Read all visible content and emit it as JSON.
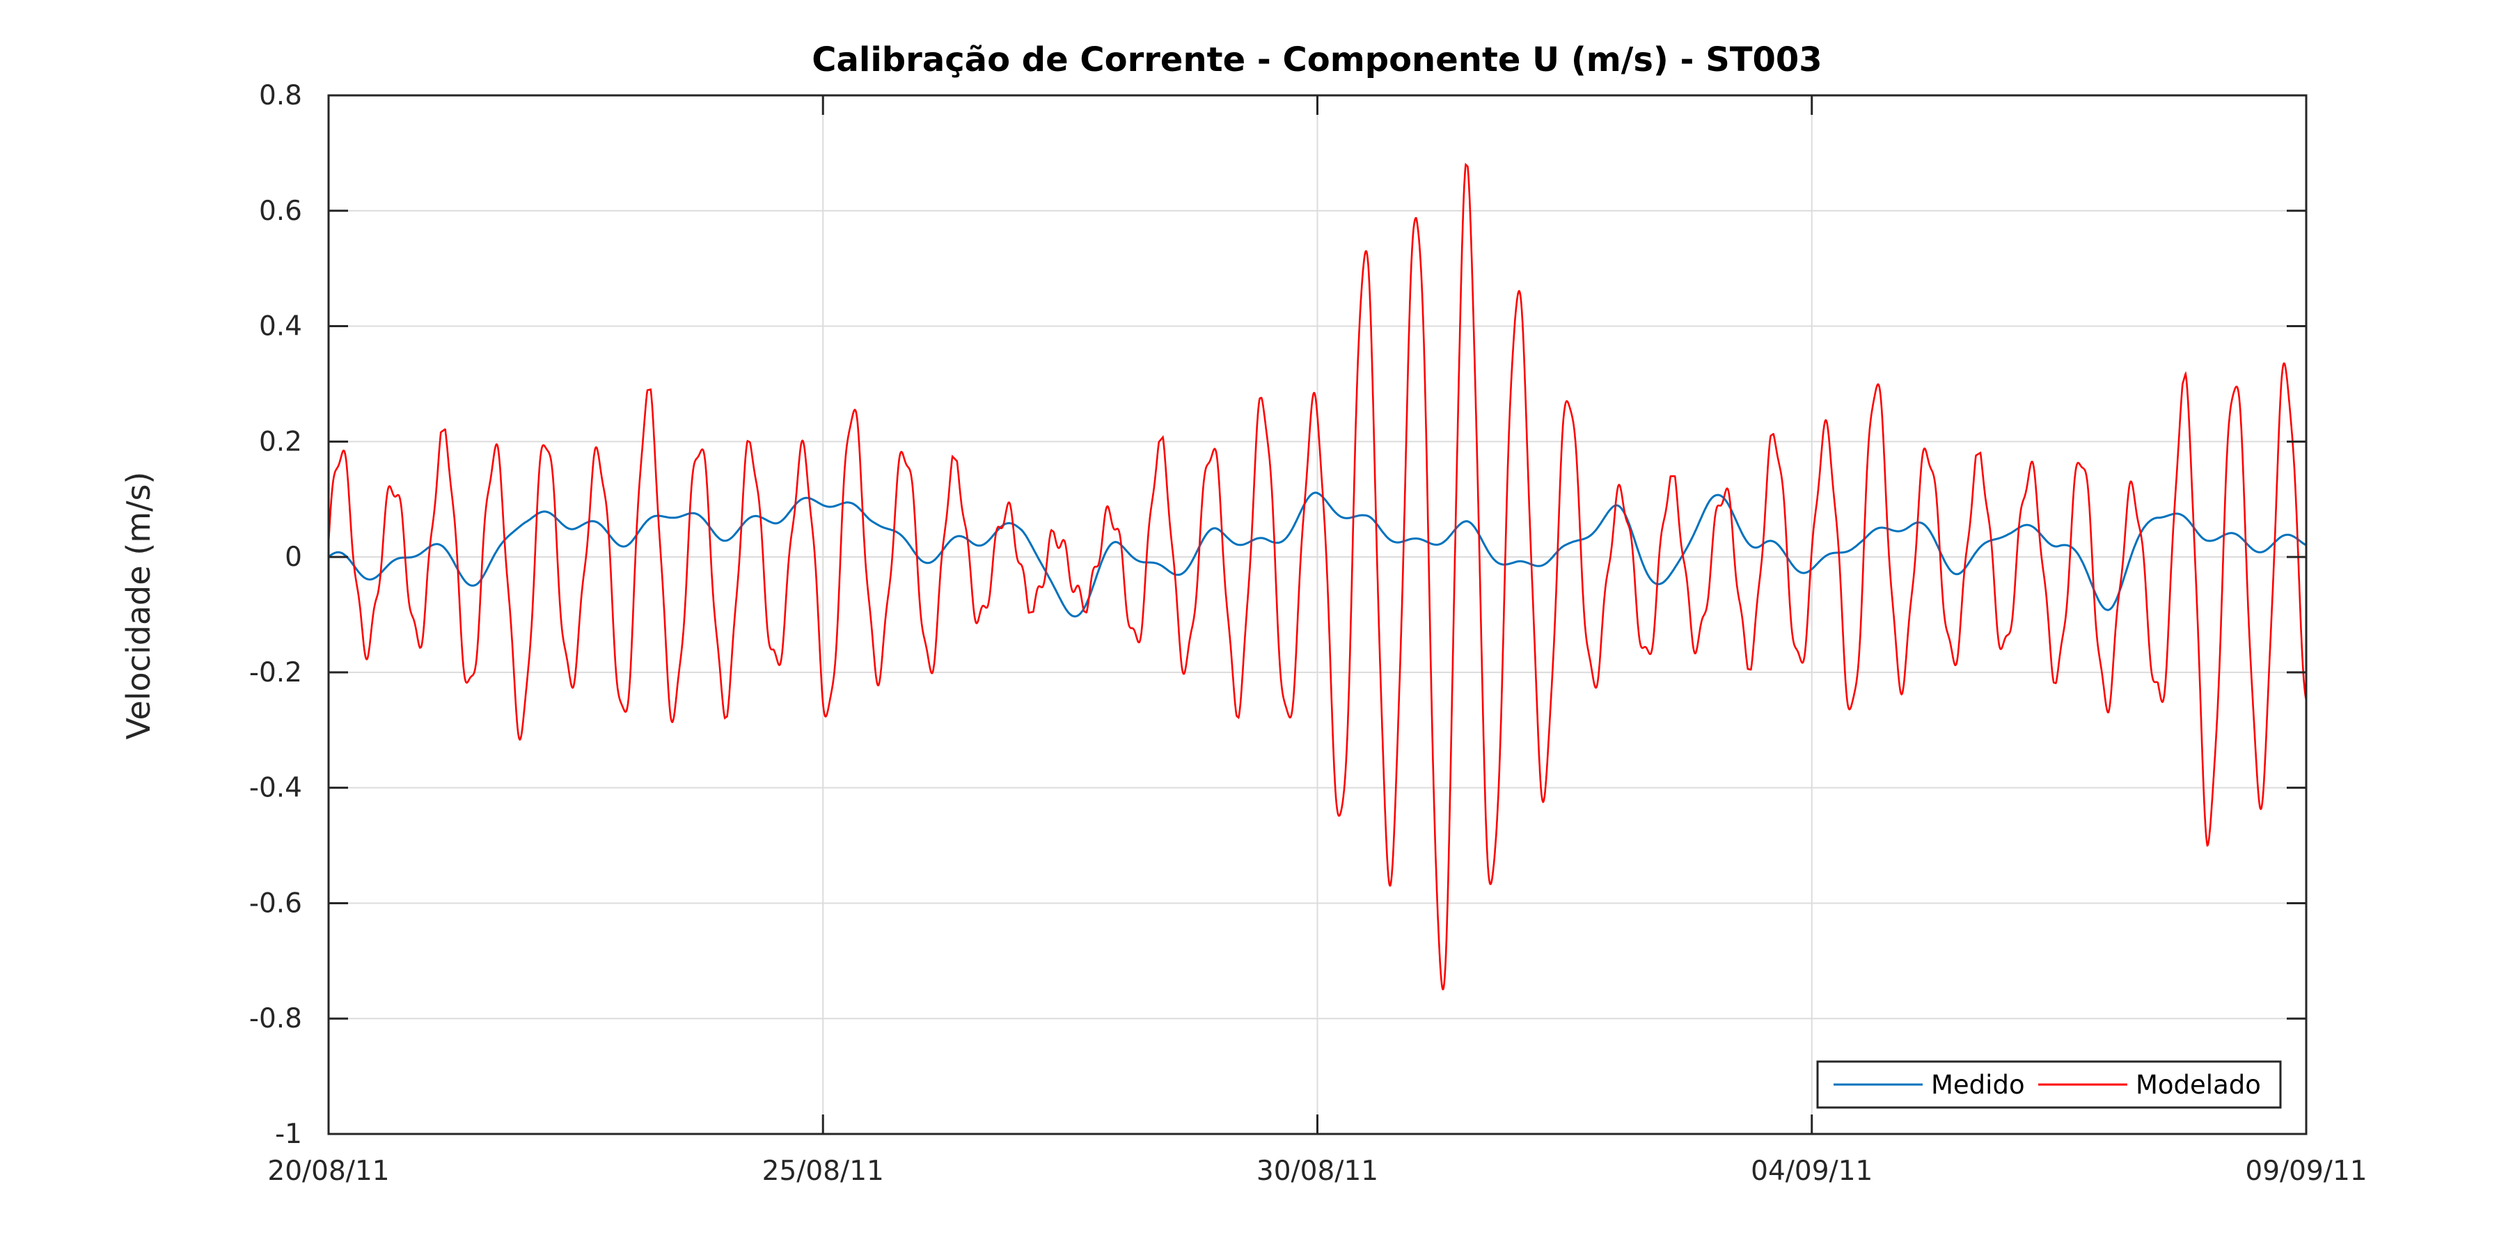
{
  "chart_data": {
    "type": "line",
    "title": "Calibração de Corrente - Componente U (m/s) - ST003",
    "xlabel": "",
    "ylabel": "Velocidade (m/s)",
    "xlim": [
      "2011-08-20",
      "2011-09-09"
    ],
    "ylim": [
      -1,
      0.8
    ],
    "x_ticks": [
      "20/08/11",
      "25/08/11",
      "30/08/11",
      "04/09/11",
      "09/09/11"
    ],
    "y_ticks": [
      "0.8",
      "0.6",
      "0.4",
      "0.2",
      "0",
      "-0.2",
      "-0.4",
      "-0.6",
      "-0.8",
      "-1"
    ],
    "grid": true,
    "legend_position": "bottom-right",
    "series": [
      {
        "name": "Medido",
        "color": "#0072BD",
        "x_unit": "day offset from 20/08/11",
        "x": [
          0,
          0.5,
          1,
          1.5,
          2,
          2.5,
          3,
          3.5,
          4,
          4.5,
          5,
          5.5,
          6,
          6.5,
          7,
          7.5,
          8,
          8.5,
          9,
          9.5,
          10,
          10.5,
          11,
          11.5,
          12,
          12.5,
          13,
          13.5,
          14,
          14.5,
          15,
          15.5,
          16,
          16.5,
          17,
          17.5,
          18,
          18.5,
          19,
          19.5,
          20
        ],
        "values": [
          0,
          -0.03,
          0.02,
          -0.04,
          0.07,
          0.06,
          0.03,
          0.08,
          0.04,
          0.07,
          0.1,
          0.07,
          0,
          0.03,
          0.05,
          -0.1,
          0.02,
          -0.03,
          0.04,
          0.02,
          0.1,
          0.06,
          0.02,
          0.05,
          -0.02,
          0.01,
          0.08,
          -0.05,
          0.1,
          0.02,
          -0.02,
          0.03,
          0.06,
          -0.02,
          0.05,
          0.03,
          -0.08,
          0.08,
          0.04,
          0.02,
          0.03
        ]
      },
      {
        "name": "Modelado",
        "color": "#FF0000",
        "x_unit": "day offset from 20/08/11",
        "envelope_x": [
          0,
          0.5,
          1,
          1.5,
          2,
          2.5,
          3,
          3.5,
          4,
          4.5,
          5,
          5.5,
          6,
          6.5,
          7,
          7.5,
          8,
          8.5,
          9,
          9.5,
          10,
          10.5,
          11,
          11.5,
          12,
          12.5,
          13,
          13.5,
          14,
          14.5,
          15,
          15.5,
          16,
          16.5,
          17,
          17.5,
          18,
          18.5,
          19,
          19.5,
          20
        ],
        "envelope_max": [
          0.2,
          0.15,
          0.2,
          0.26,
          0.22,
          0.2,
          0.28,
          0.3,
          0.22,
          0.18,
          0.28,
          0.25,
          0.23,
          0.14,
          0.09,
          0.02,
          0.12,
          0.22,
          0.25,
          0.28,
          0.35,
          0.55,
          0.77,
          0.68,
          0.6,
          0.3,
          0.15,
          0.14,
          0.14,
          0.2,
          0.26,
          0.32,
          0.28,
          0.16,
          0.21,
          0.18,
          0.18,
          0.15,
          0.45,
          0.38,
          0.3
        ],
        "envelope_min": [
          -0.15,
          -0.2,
          -0.15,
          -0.3,
          -0.32,
          -0.25,
          -0.3,
          -0.33,
          -0.28,
          -0.22,
          -0.3,
          -0.25,
          -0.22,
          -0.14,
          -0.1,
          -0.08,
          -0.13,
          -0.22,
          -0.25,
          -0.32,
          -0.38,
          -0.62,
          -0.72,
          -0.85,
          -0.55,
          -0.35,
          -0.2,
          -0.18,
          -0.18,
          -0.2,
          -0.24,
          -0.3,
          -0.26,
          -0.18,
          -0.2,
          -0.22,
          -0.3,
          -0.25,
          -0.58,
          -0.45,
          -0.35
        ],
        "period_days": 0.5175
      }
    ],
    "legend": {
      "entries": [
        "Medido",
        "Modelado"
      ]
    }
  }
}
